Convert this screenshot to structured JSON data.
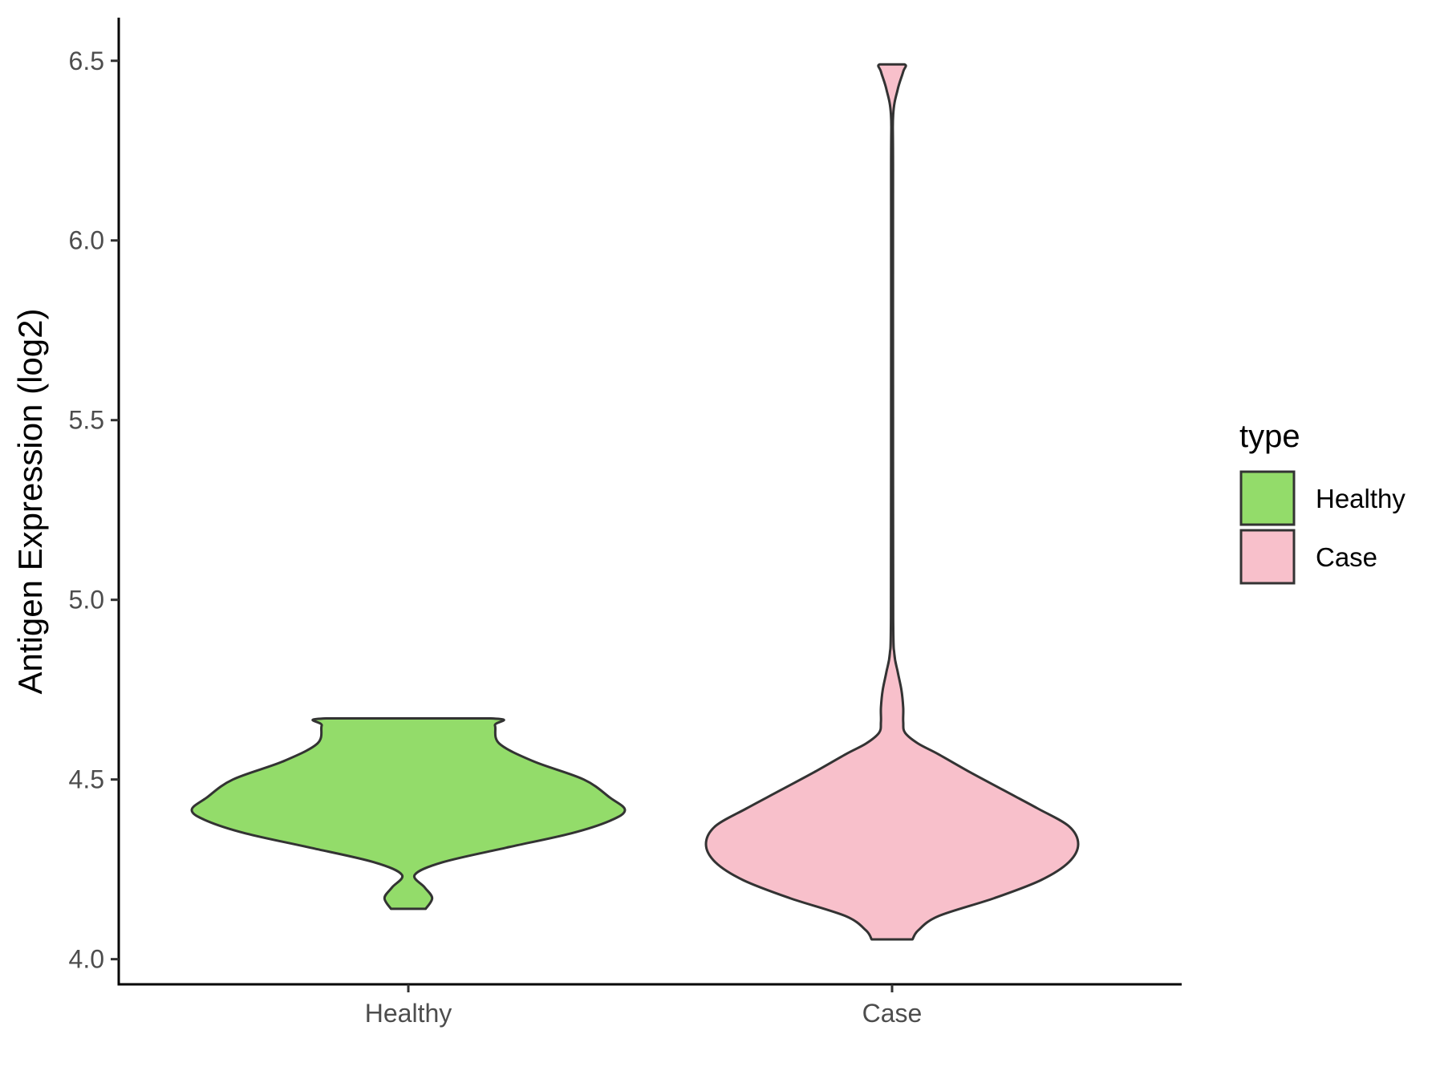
{
  "chart_data": {
    "type": "violin",
    "title": "",
    "xlabel": "",
    "ylabel": "Antigen Expression (log2)",
    "ylim": [
      3.93,
      6.62
    ],
    "yticks": [
      4.0,
      4.5,
      5.0,
      5.5,
      6.0,
      6.5
    ],
    "ytick_labels": [
      "4.0",
      "4.5",
      "5.0",
      "5.5",
      "6.0",
      "6.5"
    ],
    "categories": [
      "Healthy",
      "Case"
    ],
    "grid": false,
    "legend": {
      "title": "type",
      "placement": "right",
      "entries": [
        {
          "label": "Healthy",
          "color": "#93dc6a"
        },
        {
          "label": "Case",
          "color": "#f8c0cb"
        }
      ]
    },
    "series": [
      {
        "category": "Healthy",
        "color": "#93dc6a",
        "y_min": 4.14,
        "y_max": 4.67,
        "density_profile": [
          [
            4.14,
            0.08
          ],
          [
            4.17,
            0.11
          ],
          [
            4.2,
            0.075
          ],
          [
            4.235,
            0.03
          ],
          [
            4.27,
            0.16
          ],
          [
            4.31,
            0.45
          ],
          [
            4.35,
            0.75
          ],
          [
            4.385,
            0.93
          ],
          [
            4.415,
            1.0
          ],
          [
            4.45,
            0.93
          ],
          [
            4.5,
            0.81
          ],
          [
            4.55,
            0.58
          ],
          [
            4.6,
            0.42
          ],
          [
            4.65,
            0.4
          ],
          [
            4.67,
            0.38
          ]
        ]
      },
      {
        "category": "Case",
        "color": "#f8c0cb",
        "y_min": 4.055,
        "y_max": 6.49,
        "density_profile": [
          [
            4.055,
            0.11
          ],
          [
            4.08,
            0.14
          ],
          [
            4.12,
            0.25
          ],
          [
            4.17,
            0.55
          ],
          [
            4.22,
            0.8
          ],
          [
            4.27,
            0.95
          ],
          [
            4.32,
            1.0
          ],
          [
            4.37,
            0.95
          ],
          [
            4.42,
            0.78
          ],
          [
            4.47,
            0.6
          ],
          [
            4.52,
            0.42
          ],
          [
            4.57,
            0.25
          ],
          [
            4.6,
            0.14
          ],
          [
            4.63,
            0.07
          ],
          [
            4.66,
            0.06
          ],
          [
            4.7,
            0.06
          ],
          [
            4.75,
            0.05
          ],
          [
            4.8,
            0.03
          ],
          [
            4.85,
            0.012
          ],
          [
            4.95,
            0.006
          ],
          [
            5.5,
            0.005
          ],
          [
            6.2,
            0.005
          ],
          [
            6.35,
            0.006
          ],
          [
            6.42,
            0.03
          ],
          [
            6.47,
            0.06
          ],
          [
            6.49,
            0.065
          ]
        ]
      }
    ]
  }
}
